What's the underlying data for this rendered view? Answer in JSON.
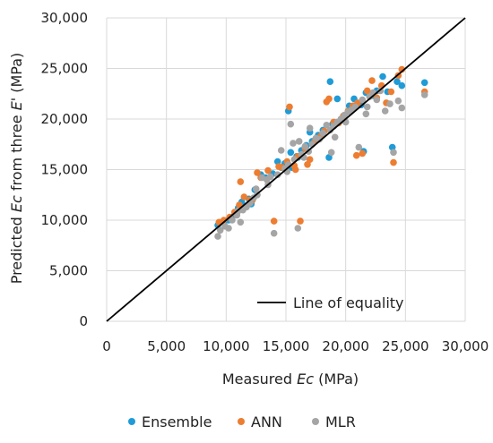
{
  "chart_data": {
    "type": "scatter",
    "xlabel": {
      "prefix": "Measured ",
      "var": "Ec",
      "suffix": " (MPa)"
    },
    "ylabel": {
      "prefix": "Predicted ",
      "var": "Ec",
      "mid": " from three ",
      "var2": "E'",
      "suffix": " (MPa)"
    },
    "xlim": [
      0,
      30000
    ],
    "ylim": [
      0,
      30000
    ],
    "xticks": [
      "0",
      "5,000",
      "10,000",
      "15,000",
      "20,000",
      "25,000",
      "30,000"
    ],
    "yticks": [
      "0",
      "5,000",
      "10,000",
      "15,000",
      "20,000",
      "25,000",
      "30,000"
    ],
    "grid": true,
    "equality_line": {
      "label": "Line of equality",
      "from": [
        0,
        0
      ],
      "to": [
        30000,
        30000
      ],
      "color": "#000000"
    },
    "legend_position": "bottom",
    "series": [
      {
        "name": "Ensemble",
        "color": "#1f9bd7",
        "points": [
          [
            9300,
            9500
          ],
          [
            9800,
            9800
          ],
          [
            10200,
            10000
          ],
          [
            10500,
            10300
          ],
          [
            11000,
            11200
          ],
          [
            11300,
            11800
          ],
          [
            11900,
            12100
          ],
          [
            12400,
            13000
          ],
          [
            12900,
            14500
          ],
          [
            13300,
            14200
          ],
          [
            13900,
            14600
          ],
          [
            14300,
            15800
          ],
          [
            14600,
            15200
          ],
          [
            14900,
            15600
          ],
          [
            15200,
            20800
          ],
          [
            15500,
            15200
          ],
          [
            15900,
            16300
          ],
          [
            16300,
            16900
          ],
          [
            16700,
            17400
          ],
          [
            17200,
            17800
          ],
          [
            17700,
            18400
          ],
          [
            18100,
            18900
          ],
          [
            18700,
            23700
          ],
          [
            18900,
            19500
          ],
          [
            19300,
            22000
          ],
          [
            19700,
            19900
          ],
          [
            20300,
            21300
          ],
          [
            20700,
            22000
          ],
          [
            21300,
            21400
          ],
          [
            21700,
            22600
          ],
          [
            22200,
            22300
          ],
          [
            22600,
            22800
          ],
          [
            23100,
            24200
          ],
          [
            23500,
            22700
          ],
          [
            23900,
            17200
          ],
          [
            24300,
            23700
          ],
          [
            24700,
            23300
          ],
          [
            26600,
            23600
          ],
          [
            16000,
            16200
          ],
          [
            17000,
            18700
          ],
          [
            21500,
            16800
          ],
          [
            18600,
            16200
          ],
          [
            15400,
            16700
          ],
          [
            12100,
            11600
          ],
          [
            10900,
            10800
          ]
        ]
      },
      {
        "name": "ANN",
        "color": "#ed7d31",
        "points": [
          [
            9400,
            9800
          ],
          [
            9800,
            10000
          ],
          [
            10300,
            10300
          ],
          [
            10700,
            10800
          ],
          [
            11200,
            13800
          ],
          [
            11500,
            12300
          ],
          [
            12000,
            12000
          ],
          [
            12600,
            14700
          ],
          [
            12900,
            14200
          ],
          [
            13500,
            14900
          ],
          [
            14000,
            9900
          ],
          [
            14400,
            15300
          ],
          [
            14700,
            15200
          ],
          [
            15100,
            15800
          ],
          [
            15300,
            21200
          ],
          [
            15700,
            15400
          ],
          [
            16000,
            16300
          ],
          [
            16200,
            9900
          ],
          [
            16600,
            17100
          ],
          [
            17000,
            16000
          ],
          [
            17400,
            17800
          ],
          [
            17900,
            18300
          ],
          [
            18200,
            18800
          ],
          [
            18600,
            22000
          ],
          [
            19000,
            19700
          ],
          [
            19400,
            19600
          ],
          [
            19800,
            20300
          ],
          [
            20200,
            20800
          ],
          [
            20600,
            21300
          ],
          [
            21000,
            21600
          ],
          [
            21400,
            16600
          ],
          [
            21800,
            22800
          ],
          [
            22200,
            23800
          ],
          [
            22600,
            22100
          ],
          [
            23000,
            23300
          ],
          [
            23400,
            21600
          ],
          [
            23800,
            22700
          ],
          [
            24000,
            15700
          ],
          [
            24400,
            24300
          ],
          [
            24700,
            24900
          ],
          [
            26600,
            22700
          ],
          [
            16800,
            15500
          ],
          [
            15800,
            15000
          ],
          [
            12200,
            12000
          ],
          [
            11100,
            11500
          ],
          [
            20900,
            16400
          ],
          [
            18400,
            21700
          ]
        ]
      },
      {
        "name": "MLR",
        "color": "#a5a5a5",
        "points": [
          [
            9300,
            8400
          ],
          [
            9500,
            9000
          ],
          [
            9900,
            9400
          ],
          [
            10200,
            9200
          ],
          [
            10500,
            10000
          ],
          [
            10900,
            10500
          ],
          [
            11200,
            9800
          ],
          [
            11400,
            11000
          ],
          [
            11700,
            11300
          ],
          [
            12000,
            11700
          ],
          [
            12300,
            12200
          ],
          [
            12600,
            12500
          ],
          [
            13000,
            14200
          ],
          [
            13400,
            14000
          ],
          [
            13700,
            14300
          ],
          [
            14000,
            8700
          ],
          [
            14300,
            14500
          ],
          [
            14600,
            16900
          ],
          [
            14900,
            15100
          ],
          [
            15200,
            15500
          ],
          [
            15400,
            19500
          ],
          [
            15700,
            16000
          ],
          [
            16000,
            9200
          ],
          [
            16300,
            16500
          ],
          [
            16600,
            17300
          ],
          [
            16900,
            16800
          ],
          [
            17200,
            17500
          ],
          [
            17500,
            18100
          ],
          [
            17800,
            18000
          ],
          [
            18100,
            18600
          ],
          [
            18400,
            19400
          ],
          [
            18700,
            18900
          ],
          [
            19000,
            19300
          ],
          [
            19300,
            19700
          ],
          [
            19600,
            20000
          ],
          [
            19900,
            20400
          ],
          [
            20200,
            20700
          ],
          [
            20500,
            20900
          ],
          [
            20800,
            21200
          ],
          [
            21100,
            17200
          ],
          [
            21400,
            21900
          ],
          [
            21700,
            20500
          ],
          [
            22000,
            22200
          ],
          [
            22300,
            22600
          ],
          [
            22600,
            21900
          ],
          [
            22900,
            22800
          ],
          [
            23300,
            20800
          ],
          [
            23700,
            21500
          ],
          [
            24000,
            16700
          ],
          [
            24400,
            21800
          ],
          [
            24700,
            21100
          ],
          [
            26600,
            22400
          ],
          [
            16100,
            17800
          ],
          [
            17000,
            19100
          ],
          [
            18800,
            16700
          ],
          [
            15600,
            17600
          ],
          [
            13500,
            13500
          ],
          [
            12500,
            13100
          ],
          [
            11000,
            10900
          ],
          [
            20000,
            19700
          ],
          [
            21800,
            21200
          ],
          [
            19100,
            18200
          ],
          [
            16500,
            16200
          ],
          [
            15100,
            14800
          ]
        ]
      }
    ]
  }
}
